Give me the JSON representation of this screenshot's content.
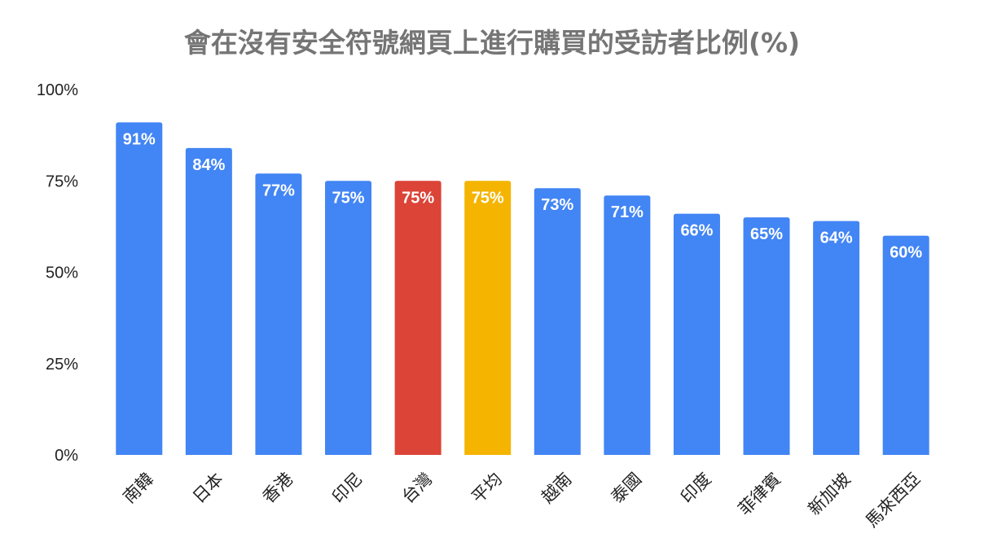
{
  "chart_data": {
    "type": "bar",
    "title": "會在沒有安全符號網頁上進行購買的受訪者比例(%)",
    "xlabel": "",
    "ylabel": "",
    "ylim": [
      0,
      100
    ],
    "yticks": [
      0,
      25,
      50,
      75,
      100
    ],
    "ytick_labels": [
      "0%",
      "25%",
      "50%",
      "75%",
      "100%"
    ],
    "grid": false,
    "legend": "none",
    "categories": [
      "南韓",
      "日本",
      "香港",
      "印尼",
      "台灣",
      "平均",
      "越南",
      "泰國",
      "印度",
      "菲律賓",
      "新加坡",
      "馬來西亞"
    ],
    "values": [
      91,
      84,
      77,
      75,
      75,
      75,
      73,
      71,
      66,
      65,
      64,
      60
    ],
    "data_labels": [
      "91%",
      "84%",
      "77%",
      "75%",
      "75%",
      "75%",
      "73%",
      "71%",
      "66%",
      "65%",
      "64%",
      "60%"
    ],
    "colors": [
      "#4285F4",
      "#4285F4",
      "#4285F4",
      "#4285F4",
      "#DB4437",
      "#F4B400",
      "#4285F4",
      "#4285F4",
      "#4285F4",
      "#4285F4",
      "#4285F4",
      "#4285F4"
    ]
  }
}
